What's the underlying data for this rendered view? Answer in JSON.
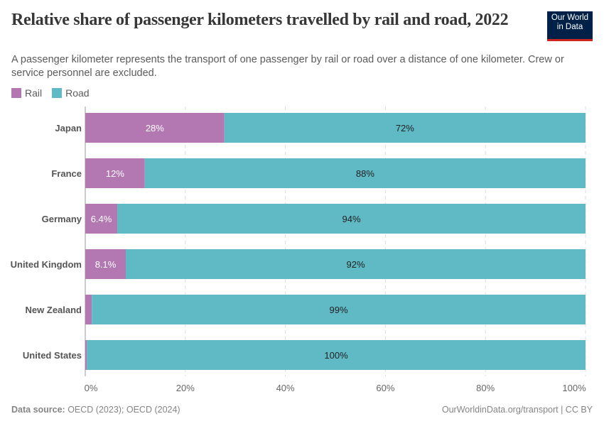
{
  "header": {
    "title": "Relative share of passenger kilometers travelled by rail and road, 2022",
    "subtitle": "A passenger kilometer represents the transport of one passenger by rail or road over a distance of one kilometer. Crew or service personnel are excluded.",
    "logo": "Our World in Data"
  },
  "footer": {
    "source_label": "Data source:",
    "source": " OECD (2023); OECD (2024)",
    "credit": "OurWorldinData.org/transport | CC BY"
  },
  "chart_data": {
    "type": "bar",
    "orientation": "horizontal",
    "stacked": true,
    "categories": [
      "Japan",
      "France",
      "Germany",
      "United Kingdom",
      "New Zealand",
      "United States"
    ],
    "series": [
      {
        "name": "Rail",
        "color": "#b377b1",
        "values": [
          27.8,
          11.9,
          6.4,
          8.1,
          1.3,
          0.3
        ],
        "labels": [
          "28%",
          "12%",
          "6.4%",
          "8.1%",
          "",
          ""
        ]
      },
      {
        "name": "Road",
        "color": "#5fbac6",
        "values": [
          72.2,
          88.1,
          93.6,
          91.9,
          98.7,
          99.7
        ],
        "labels": [
          "72%",
          "88%",
          "94%",
          "92%",
          "99%",
          "100%"
        ]
      }
    ],
    "xlim": [
      0,
      100
    ],
    "xticks": [
      "0%",
      "20%",
      "40%",
      "60%",
      "80%",
      "100%"
    ],
    "grid": "vertical dashed",
    "legend": "top-left"
  }
}
